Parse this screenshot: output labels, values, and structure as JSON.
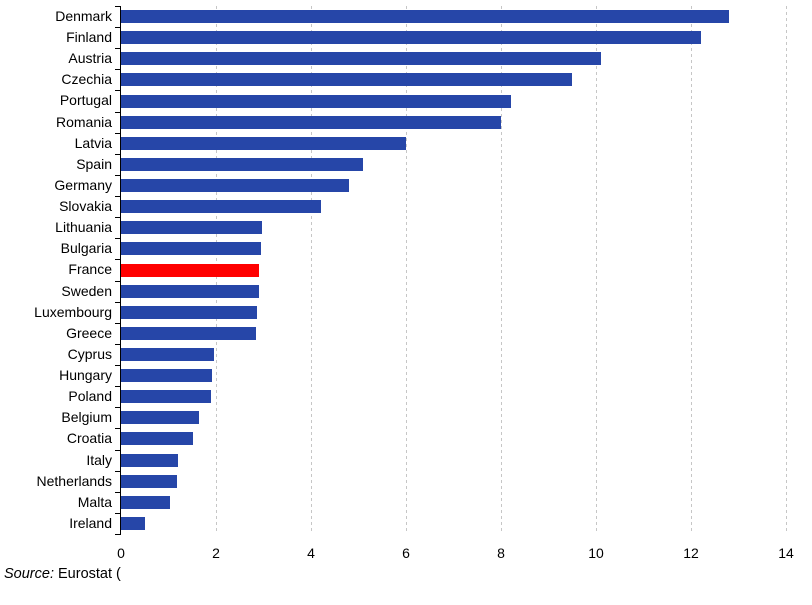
{
  "chart_data": {
    "type": "bar",
    "orientation": "horizontal",
    "title": "",
    "xlabel": "",
    "ylabel": "",
    "xlim": [
      0,
      14
    ],
    "x_ticks": [
      0,
      2,
      4,
      6,
      8,
      10,
      12,
      14
    ],
    "grid": "vertical dashed gridlines at each x tick, y-axis ticks at category boundaries",
    "legend": "none",
    "categories": [
      "Denmark",
      "Finland",
      "Austria",
      "Czechia",
      "Portugal",
      "Romania",
      "Latvia",
      "Spain",
      "Germany",
      "Slovakia",
      "Lithuania",
      "Bulgaria",
      "France",
      "Sweden",
      "Luxembourg",
      "Greece",
      "Cyprus",
      "Hungary",
      "Poland",
      "Belgium",
      "Croatia",
      "Italy",
      "Netherlands",
      "Malta",
      "Ireland"
    ],
    "values": [
      12.8,
      12.2,
      10.1,
      9.5,
      8.2,
      8.0,
      6.0,
      5.1,
      4.8,
      4.2,
      2.97,
      2.95,
      2.91,
      2.9,
      2.87,
      2.84,
      1.96,
      1.92,
      1.9,
      1.64,
      1.52,
      1.2,
      1.18,
      1.03,
      0.51
    ],
    "highlight_category": "France",
    "colors": {
      "bar": "#2646A8",
      "highlight": "#FF0000",
      "grid": "#C6C6C6",
      "axis": "#000000",
      "text": "#000000",
      "background": "#FFFFFF"
    }
  },
  "source": {
    "prefix": "Source:",
    "rest": " Eurostat ("
  }
}
